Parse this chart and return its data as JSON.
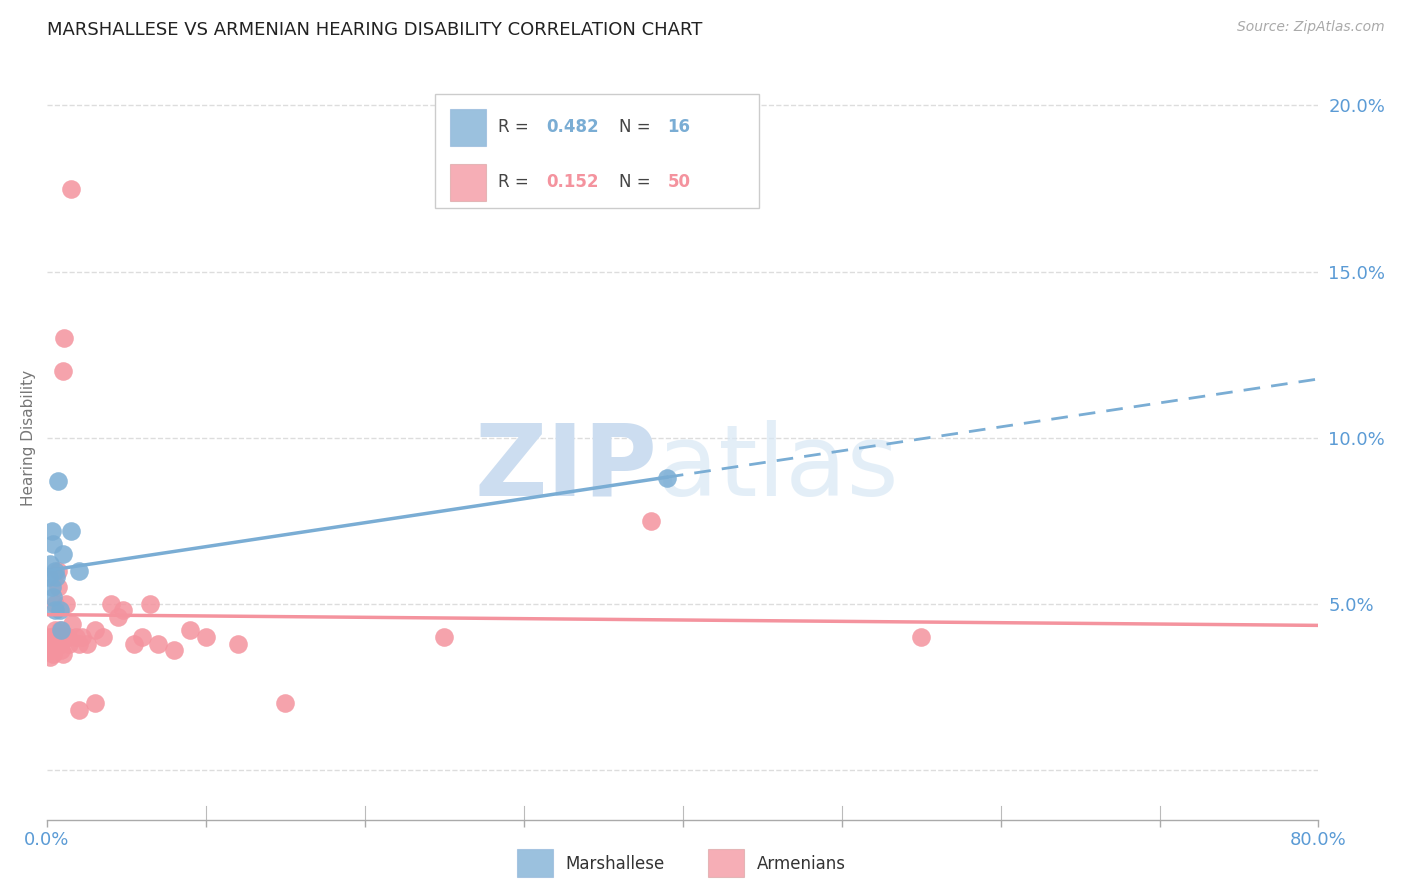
{
  "title": "MARSHALLESE VS ARMENIAN HEARING DISABILITY CORRELATION CHART",
  "source": "Source: ZipAtlas.com",
  "ylabel": "Hearing Disability",
  "right_yticks": [
    0.0,
    0.05,
    0.1,
    0.15,
    0.2
  ],
  "right_yticklabels": [
    "",
    "5.0%",
    "10.0%",
    "15.0%",
    "20.0%"
  ],
  "xlim": [
    0.0,
    0.8
  ],
  "ylim": [
    -0.015,
    0.215
  ],
  "marshallese_R": 0.482,
  "marshallese_N": 16,
  "armenian_R": 0.152,
  "armenian_N": 50,
  "marshallese_color": "#7aadd4",
  "armenian_color": "#f4939e",
  "marshallese_x": [
    0.001,
    0.002,
    0.003,
    0.003,
    0.004,
    0.004,
    0.005,
    0.005,
    0.006,
    0.007,
    0.008,
    0.009,
    0.01,
    0.015,
    0.02,
    0.39
  ],
  "marshallese_y": [
    0.058,
    0.062,
    0.072,
    0.055,
    0.068,
    0.052,
    0.06,
    0.048,
    0.058,
    0.087,
    0.048,
    0.042,
    0.065,
    0.072,
    0.06,
    0.088
  ],
  "armenian_x": [
    0.001,
    0.001,
    0.002,
    0.002,
    0.003,
    0.003,
    0.004,
    0.004,
    0.005,
    0.005,
    0.006,
    0.006,
    0.007,
    0.007,
    0.008,
    0.008,
    0.009,
    0.009,
    0.01,
    0.01,
    0.011,
    0.011,
    0.012,
    0.013,
    0.014,
    0.015,
    0.016,
    0.018,
    0.02,
    0.02,
    0.022,
    0.025,
    0.03,
    0.03,
    0.035,
    0.04,
    0.045,
    0.048,
    0.055,
    0.06,
    0.065,
    0.07,
    0.08,
    0.09,
    0.1,
    0.12,
    0.15,
    0.25,
    0.38,
    0.55
  ],
  "armenian_y": [
    0.04,
    0.036,
    0.038,
    0.034,
    0.04,
    0.036,
    0.038,
    0.035,
    0.05,
    0.042,
    0.04,
    0.037,
    0.06,
    0.055,
    0.04,
    0.042,
    0.038,
    0.036,
    0.12,
    0.035,
    0.13,
    0.04,
    0.05,
    0.04,
    0.038,
    0.175,
    0.044,
    0.04,
    0.038,
    0.018,
    0.04,
    0.038,
    0.042,
    0.02,
    0.04,
    0.05,
    0.046,
    0.048,
    0.038,
    0.04,
    0.05,
    0.038,
    0.036,
    0.042,
    0.04,
    0.038,
    0.02,
    0.04,
    0.075,
    0.04
  ],
  "background_color": "#ffffff",
  "grid_color": "#dddddd",
  "tick_label_color": "#5b9bd5",
  "title_color": "#222222",
  "title_fontsize": 13,
  "axis_label_fontsize": 11
}
